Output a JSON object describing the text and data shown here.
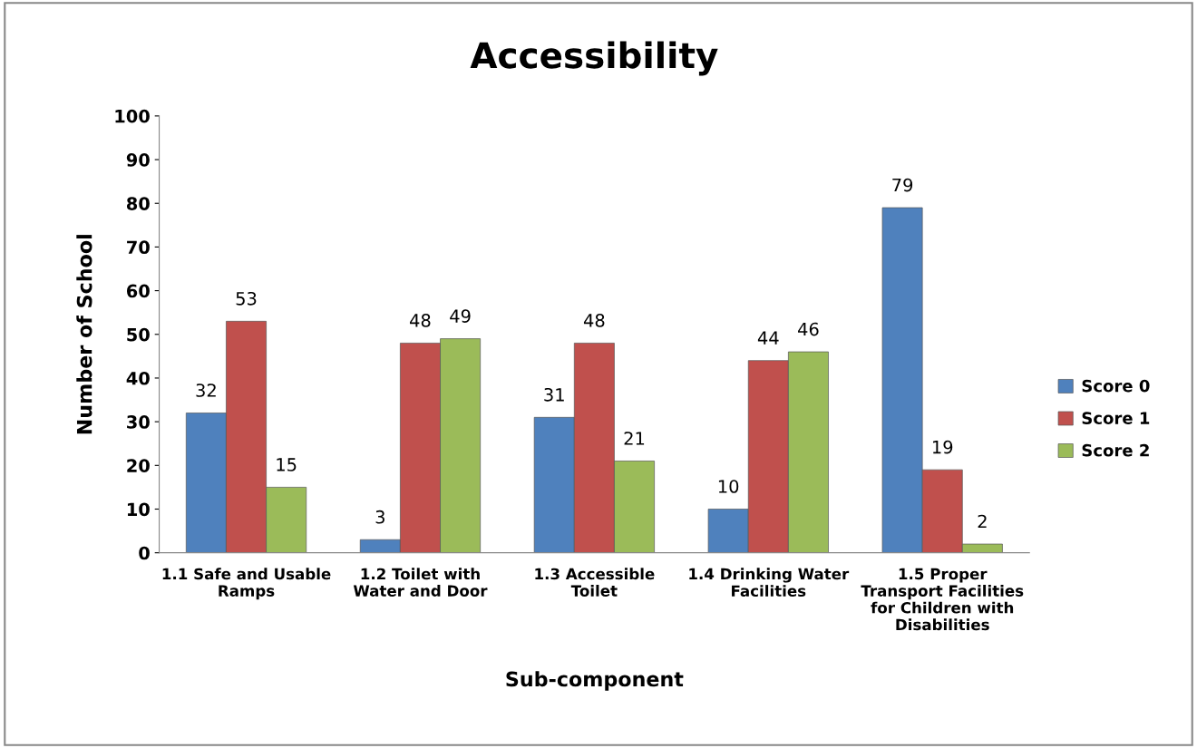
{
  "chart_data": {
    "type": "bar",
    "title": "Accessibility",
    "xlabel": "Sub-component",
    "ylabel": "Number of School",
    "categories": [
      "1.1 Safe and Usable\nRamps",
      "1.2 Toilet with\nWater and Door",
      "1.3 Accessible\nToilet",
      "1.4 Drinking Water\nFacilities",
      "1.5 Proper\nTransport Facilities\nfor Children with\nDisabilities"
    ],
    "series": [
      {
        "name": "Score 0",
        "color": "#4f81bd",
        "values": [
          32,
          3,
          31,
          10,
          79
        ]
      },
      {
        "name": "Score 1",
        "color": "#c0504d",
        "values": [
          53,
          48,
          48,
          44,
          19
        ]
      },
      {
        "name": "Score 2",
        "color": "#9bbb59",
        "values": [
          15,
          49,
          21,
          46,
          2
        ]
      }
    ],
    "ylim": [
      0,
      100
    ],
    "yticks": [
      0,
      10,
      20,
      30,
      40,
      50,
      60,
      70,
      80,
      90,
      100
    ],
    "grid": false,
    "legend": "right",
    "data_labels": true
  }
}
